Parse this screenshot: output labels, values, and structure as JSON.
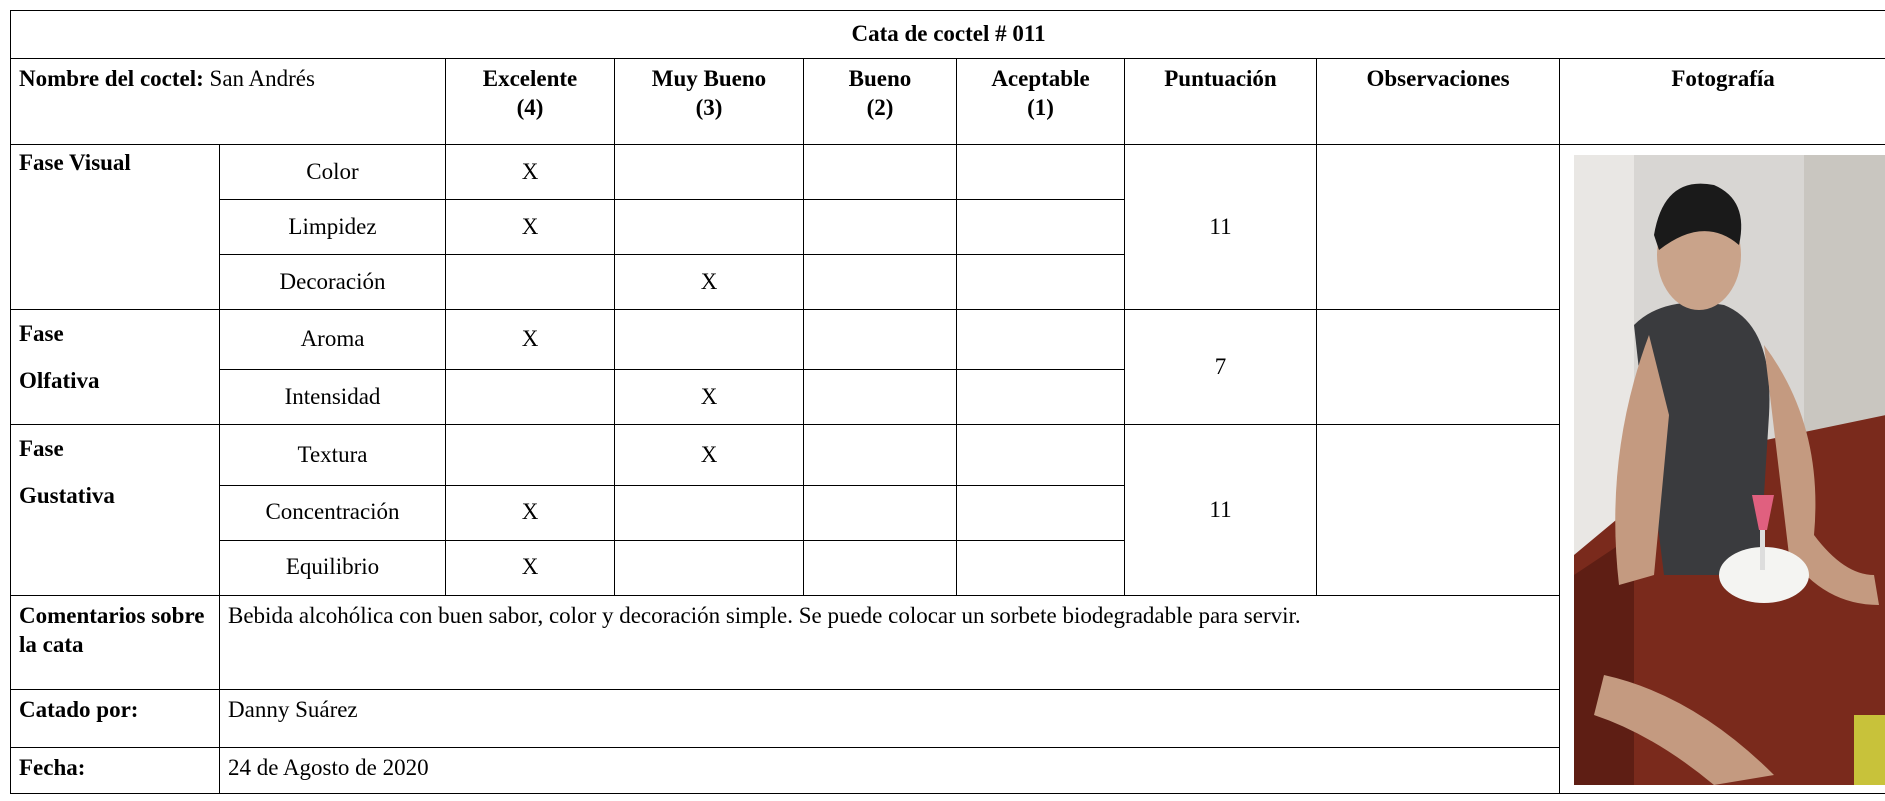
{
  "title": "Cata de coctel # 011",
  "header": {
    "name_label": "Nombre del coctel:",
    "name": "San Andrés",
    "ratings": [
      {
        "label": "Excelente",
        "points": "(4)"
      },
      {
        "label": "Muy Bueno",
        "points": "(3)"
      },
      {
        "label": "Bueno",
        "points": "(2)"
      },
      {
        "label": "Aceptable",
        "points": "(1)"
      }
    ],
    "score": "Puntuación",
    "observations": "Observaciones",
    "photo": "Fotografía"
  },
  "phases": [
    {
      "label": "Fase Visual",
      "score": 11,
      "criteria": [
        {
          "name": "Color",
          "excelente": "X"
        },
        {
          "name": "Limpidez",
          "excelente": "X"
        },
        {
          "name": "Decoración",
          "muy_bueno": "X"
        }
      ]
    },
    {
      "label": "Fase Olfativa",
      "score": 7,
      "criteria": [
        {
          "name": "Aroma",
          "excelente": "X"
        },
        {
          "name": "Intensidad",
          "muy_bueno": "X"
        }
      ]
    },
    {
      "label": "Fase Gustativa",
      "score": 11,
      "criteria": [
        {
          "name": "Textura",
          "muy_bueno": "X"
        },
        {
          "name": "Concentración",
          "excelente": "X"
        },
        {
          "name": "Equilibrio",
          "excelente": "X"
        }
      ]
    }
  ],
  "comments": {
    "label": "Comentarios sobre la cata",
    "text": "Bebida alcohólica con buen sabor, color y decoración simple. Se puede colocar un sorbete biodegradable para servir."
  },
  "tasted_by": {
    "label": "Catado por:",
    "value": "Danny Suárez"
  },
  "date": {
    "label": "Fecha:",
    "value": "24 de Agosto de 2020"
  }
}
